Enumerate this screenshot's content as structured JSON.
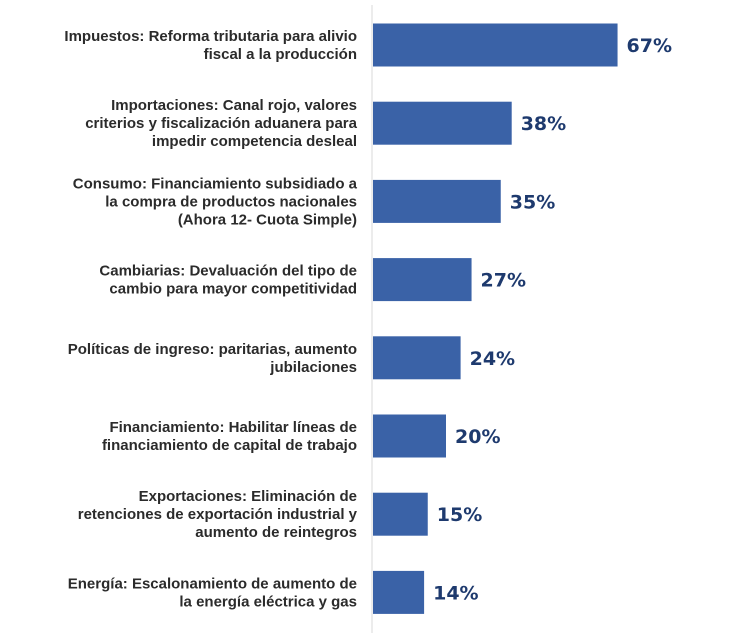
{
  "chart_data": {
    "type": "bar",
    "orientation": "horizontal",
    "categories": [
      [
        "Impuestos: Reforma tributaria para alivio",
        "fiscal a la producción"
      ],
      [
        "Importaciones: Canal rojo, valores",
        "criterios y fiscalización aduanera para",
        "impedir competencia desleal"
      ],
      [
        "Consumo: Financiamiento subsidiado a",
        "la compra de productos nacionales",
        "(Ahora 12- Cuota Simple)"
      ],
      [
        "Cambiarias: Devaluación del tipo de",
        "cambio para mayor competitividad"
      ],
      [
        "Políticas de ingreso: paritarias, aumento",
        "jubilaciones"
      ],
      [
        "Financiamiento: Habilitar líneas de",
        "financiamiento de capital de trabajo"
      ],
      [
        "Exportaciones: Eliminación de",
        "retenciones de exportación industrial y",
        "aumento de reintegros"
      ],
      [
        "Energía: Escalonamiento de aumento de",
        "la energía eléctrica y gas"
      ]
    ],
    "values": [
      67,
      38,
      35,
      27,
      24,
      20,
      15,
      14
    ],
    "value_labels": [
      "67%",
      "38%",
      "35%",
      "27%",
      "24%",
      "20%",
      "15%",
      "14%"
    ],
    "xlim": [
      0,
      100
    ],
    "grid": false,
    "legend": "none",
    "colors": {
      "bar": "#3a62a7",
      "value_label": "#1e3a6e",
      "category_label": "#2b2b2b",
      "axis_line": "#d9d9d9"
    }
  }
}
